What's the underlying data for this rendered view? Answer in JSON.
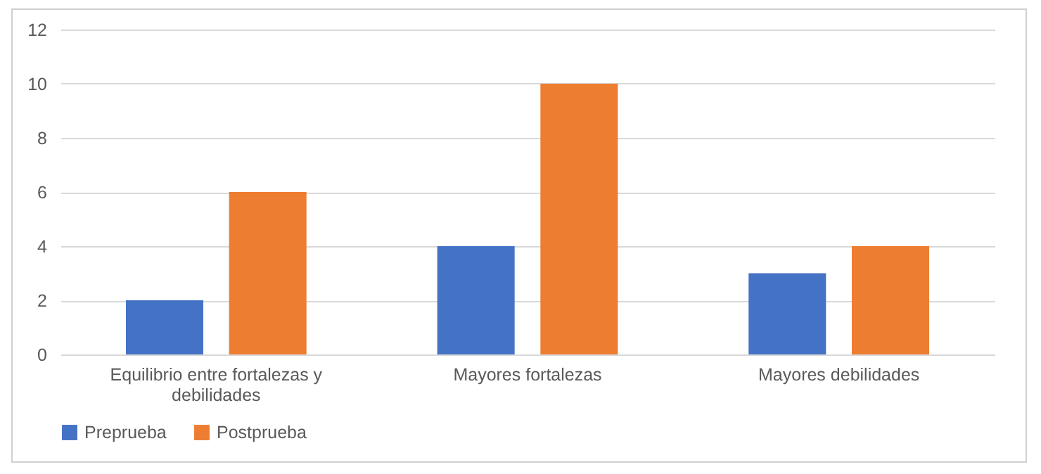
{
  "chart_data": {
    "type": "bar",
    "categories": [
      "Equilibrio entre fortalezas y debilidades",
      "Mayores fortalezas",
      "Mayores debilidades"
    ],
    "series": [
      {
        "name": "Preprueba",
        "color": "#4472c4",
        "values": [
          2,
          4,
          3
        ]
      },
      {
        "name": "Postprueba",
        "color": "#ed7d31",
        "values": [
          6,
          10,
          4
        ]
      }
    ],
    "ylim": [
      0,
      12
    ],
    "yticks": [
      0,
      2,
      4,
      6,
      8,
      10,
      12
    ],
    "grid": "y",
    "legend": "bottom"
  }
}
